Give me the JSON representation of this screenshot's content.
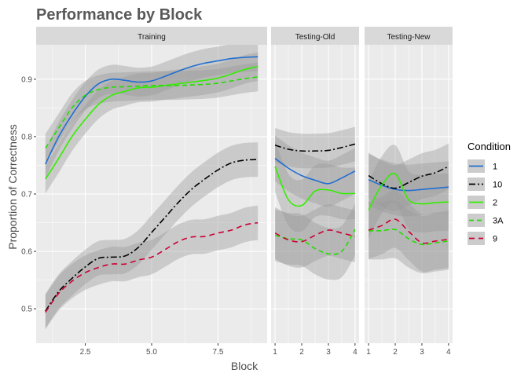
{
  "chart_data": {
    "type": "line",
    "title": "Performance by Block",
    "xlabel": "Block",
    "ylabel": "Proportion of Correctness",
    "ylim": [
      0.44,
      0.96
    ],
    "yticks": [
      0.5,
      0.6,
      0.7,
      0.8,
      0.9
    ],
    "ytick_labels": [
      "0.5",
      "0.6",
      "0.7",
      "0.8",
      "0.9"
    ],
    "grid": true,
    "legend": {
      "title": "Condition",
      "position": "right",
      "entries": [
        {
          "label": "1",
          "color": "#1f6fd1",
          "dash": "none"
        },
        {
          "label": "10",
          "color": "#000000",
          "dash": "8 3 2 3"
        },
        {
          "label": "2",
          "color": "#33ee00",
          "dash": "none"
        },
        {
          "label": "3A",
          "color": "#22dd00",
          "dash": "6 4"
        },
        {
          "label": "9",
          "color": "#cc0033",
          "dash": "7 5"
        }
      ]
    },
    "panels": [
      {
        "name": "Training",
        "xlim": [
          0.65,
          9.35
        ],
        "xticks": [
          2.5,
          5.0,
          7.5
        ],
        "xtick_labels": [
          "2.5",
          "5.0",
          "7.5"
        ],
        "series": [
          {
            "name": "1",
            "x": [
              1,
              1.5,
              2,
              2.5,
              3,
              3.5,
              4,
              4.5,
              5,
              5.5,
              6,
              6.5,
              7,
              7.5,
              8,
              8.5,
              9
            ],
            "y": [
              0.752,
              0.8,
              0.838,
              0.87,
              0.892,
              0.9,
              0.898,
              0.895,
              0.897,
              0.905,
              0.914,
              0.922,
              0.928,
              0.932,
              0.936,
              0.938,
              0.939
            ],
            "band": 0.025
          },
          {
            "name": "10",
            "x": [
              1,
              1.5,
              2,
              2.5,
              3,
              3.5,
              4,
              4.5,
              5,
              5.5,
              6,
              6.5,
              7,
              7.5,
              8,
              8.5,
              9
            ],
            "y": [
              0.496,
              0.53,
              0.553,
              0.573,
              0.588,
              0.59,
              0.592,
              0.607,
              0.633,
              0.659,
              0.685,
              0.708,
              0.726,
              0.742,
              0.754,
              0.759,
              0.76
            ],
            "band": 0.03
          },
          {
            "name": "2",
            "x": [
              1,
              1.5,
              2,
              2.5,
              3,
              3.5,
              4,
              4.5,
              5,
              5.5,
              6,
              6.5,
              7,
              7.5,
              8,
              8.5,
              9
            ],
            "y": [
              0.726,
              0.762,
              0.8,
              0.83,
              0.856,
              0.872,
              0.879,
              0.885,
              0.886,
              0.889,
              0.892,
              0.895,
              0.898,
              0.902,
              0.909,
              0.917,
              0.922
            ],
            "band": 0.025
          },
          {
            "name": "3A",
            "x": [
              1,
              1.5,
              2,
              2.5,
              3,
              3.5,
              4,
              4.5,
              5,
              5.5,
              6,
              6.5,
              7,
              7.5,
              8,
              8.5,
              9
            ],
            "y": [
              0.78,
              0.815,
              0.85,
              0.872,
              0.882,
              0.886,
              0.887,
              0.888,
              0.889,
              0.889,
              0.889,
              0.89,
              0.891,
              0.893,
              0.897,
              0.901,
              0.904
            ],
            "band": 0.025
          },
          {
            "name": "9",
            "x": [
              1,
              1.5,
              2,
              2.5,
              3,
              3.5,
              4,
              4.5,
              5,
              5.5,
              6,
              6.5,
              7,
              7.5,
              8,
              8.5,
              9
            ],
            "y": [
              0.494,
              0.527,
              0.548,
              0.563,
              0.572,
              0.578,
              0.578,
              0.585,
              0.59,
              0.603,
              0.617,
              0.625,
              0.626,
              0.632,
              0.637,
              0.646,
              0.65
            ],
            "band": 0.03
          }
        ]
      },
      {
        "name": "Testing-Old",
        "xlim": [
          0.85,
          4.15
        ],
        "xticks": [
          1,
          2,
          3,
          4
        ],
        "xtick_labels": [
          "1",
          "2",
          "3",
          "4"
        ],
        "series": [
          {
            "name": "1",
            "x": [
              1,
              1.5,
              2,
              2.5,
              3,
              3.5,
              4
            ],
            "y": [
              0.762,
              0.745,
              0.732,
              0.724,
              0.718,
              0.728,
              0.74
            ],
            "band": 0.04
          },
          {
            "name": "10",
            "x": [
              1,
              1.5,
              2,
              2.5,
              3,
              3.5,
              4
            ],
            "y": [
              0.785,
              0.778,
              0.775,
              0.775,
              0.776,
              0.781,
              0.787
            ],
            "band": 0.03
          },
          {
            "name": "2",
            "x": [
              1,
              1.5,
              2,
              2.5,
              3,
              3.5,
              4
            ],
            "y": [
              0.748,
              0.69,
              0.68,
              0.705,
              0.707,
              0.701,
              0.701
            ],
            "band": 0.045
          },
          {
            "name": "3A",
            "x": [
              1,
              1.5,
              2,
              2.5,
              3,
              3.5,
              4
            ],
            "y": [
              0.628,
              0.622,
              0.62,
              0.605,
              0.596,
              0.6,
              0.638
            ],
            "band": 0.045
          },
          {
            "name": "9",
            "x": [
              1,
              1.5,
              2,
              2.5,
              3,
              3.5,
              4
            ],
            "y": [
              0.632,
              0.62,
              0.617,
              0.628,
              0.637,
              0.632,
              0.626
            ],
            "band": 0.045
          }
        ]
      },
      {
        "name": "Testing-New",
        "xlim": [
          0.85,
          4.15
        ],
        "xticks": [
          1,
          2,
          3,
          4
        ],
        "xtick_labels": [
          "1",
          "2",
          "3",
          "4"
        ],
        "series": [
          {
            "name": "1",
            "x": [
              1,
              1.5,
              2,
              2.5,
              3,
              3.5,
              4
            ],
            "y": [
              0.725,
              0.715,
              0.708,
              0.706,
              0.708,
              0.71,
              0.712
            ],
            "band": 0.045
          },
          {
            "name": "10",
            "x": [
              1,
              1.5,
              2,
              2.5,
              3,
              3.5,
              4
            ],
            "y": [
              0.732,
              0.718,
              0.71,
              0.72,
              0.731,
              0.737,
              0.748
            ],
            "band": 0.04
          },
          {
            "name": "2",
            "x": [
              1,
              1.5,
              2,
              2.5,
              3,
              3.5,
              4
            ],
            "y": [
              0.672,
              0.716,
              0.735,
              0.69,
              0.683,
              0.685,
              0.686
            ],
            "band": 0.05
          },
          {
            "name": "3A",
            "x": [
              1,
              1.5,
              2,
              2.5,
              3,
              3.5,
              4
            ],
            "y": [
              0.636,
              0.636,
              0.638,
              0.622,
              0.612,
              0.615,
              0.618
            ],
            "band": 0.05
          },
          {
            "name": "9",
            "x": [
              1,
              1.5,
              2,
              2.5,
              3,
              3.5,
              4
            ],
            "y": [
              0.637,
              0.645,
              0.656,
              0.635,
              0.615,
              0.618,
              0.621
            ],
            "band": 0.05
          }
        ]
      }
    ]
  }
}
